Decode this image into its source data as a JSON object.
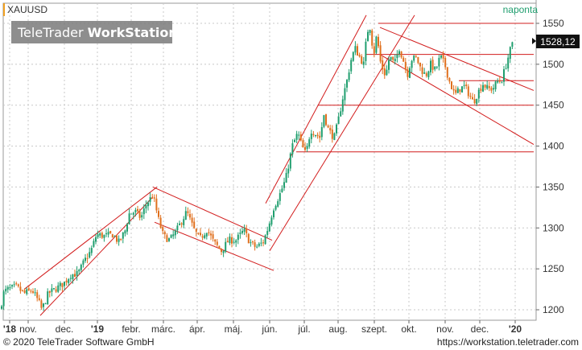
{
  "symbol": "XAUUSD",
  "period": "naponta",
  "brand": {
    "name_light": "TeleTrader ",
    "name_bold": "WorkStation"
  },
  "last_price_label": "1528,12",
  "footer": {
    "copyright": "© 2020 TeleTrader Software GmbH",
    "url": "https://workstation.teletrader.com"
  },
  "colors": {
    "up": "#1f9e6e",
    "down": "#e0701e",
    "trendline": "#d21c1c",
    "grid": "#c8c8c8",
    "symbol_accent": "#f0a020",
    "period_text": "#1f9e6e"
  },
  "chart_data": {
    "type": "candlestick",
    "y_axis": {
      "ticks": [
        1200,
        1250,
        1300,
        1350,
        1400,
        1450,
        1500,
        1550
      ],
      "ylim": [
        1190,
        1565
      ]
    },
    "x_axis": {
      "labels": [
        "'18",
        "nov.",
        "dec.",
        "'19",
        "febr.",
        "márc.",
        "ápr.",
        "máj.",
        "jún.",
        "júl.",
        "aug.",
        "szept.",
        "okt.",
        "nov.",
        "dec.",
        "'20"
      ],
      "bold_labels": [
        "'18",
        "'19",
        "'20"
      ]
    },
    "last_value": 1528.12,
    "path": [
      [
        0,
        1200
      ],
      [
        5,
        1222
      ],
      [
        10,
        1225
      ],
      [
        20,
        1228
      ],
      [
        30,
        1220
      ],
      [
        40,
        1224
      ],
      [
        48,
        1210
      ],
      [
        52,
        1200
      ],
      [
        60,
        1220
      ],
      [
        70,
        1226
      ],
      [
        80,
        1233
      ],
      [
        88,
        1243
      ],
      [
        97,
        1244
      ],
      [
        105,
        1260
      ],
      [
        113,
        1272
      ],
      [
        120,
        1292
      ],
      [
        130,
        1290
      ],
      [
        140,
        1292
      ],
      [
        148,
        1282
      ],
      [
        156,
        1298
      ],
      [
        160,
        1317
      ],
      [
        168,
        1320
      ],
      [
        175,
        1312
      ],
      [
        182,
        1330
      ],
      [
        190,
        1340
      ],
      [
        197,
        1310
      ],
      [
        203,
        1290
      ],
      [
        211,
        1285
      ],
      [
        220,
        1298
      ],
      [
        232,
        1320
      ],
      [
        240,
        1300
      ],
      [
        248,
        1286
      ],
      [
        257,
        1298
      ],
      [
        266,
        1282
      ],
      [
        275,
        1272
      ],
      [
        284,
        1285
      ],
      [
        293,
        1285
      ],
      [
        303,
        1297
      ],
      [
        310,
        1283
      ],
      [
        318,
        1276
      ],
      [
        327,
        1283
      ],
      [
        333,
        1300
      ],
      [
        340,
        1325
      ],
      [
        348,
        1342
      ],
      [
        355,
        1360
      ],
      [
        363,
        1400
      ],
      [
        370,
        1416
      ],
      [
        375,
        1400
      ],
      [
        380,
        1390
      ],
      [
        386,
        1420
      ],
      [
        392,
        1415
      ],
      [
        398,
        1410
      ],
      [
        402,
        1440
      ],
      [
        408,
        1420
      ],
      [
        415,
        1410
      ],
      [
        420,
        1430
      ],
      [
        426,
        1460
      ],
      [
        431,
        1480
      ],
      [
        436,
        1505
      ],
      [
        441,
        1520
      ],
      [
        446,
        1510
      ],
      [
        452,
        1500
      ],
      [
        456,
        1540
      ],
      [
        460,
        1546
      ],
      [
        464,
        1510
      ],
      [
        468,
        1536
      ],
      [
        473,
        1500
      ],
      [
        479,
        1486
      ],
      [
        484,
        1510
      ],
      [
        490,
        1500
      ],
      [
        496,
        1520
      ],
      [
        501,
        1505
      ],
      [
        506,
        1487
      ],
      [
        511,
        1506
      ],
      [
        517,
        1508
      ],
      [
        523,
        1494
      ],
      [
        529,
        1486
      ],
      [
        535,
        1500
      ],
      [
        541,
        1492
      ],
      [
        547,
        1510
      ],
      [
        553,
        1498
      ],
      [
        558,
        1480
      ],
      [
        565,
        1462
      ],
      [
        571,
        1470
      ],
      [
        577,
        1473
      ],
      [
        583,
        1463
      ],
      [
        588,
        1453
      ],
      [
        594,
        1466
      ],
      [
        600,
        1476
      ],
      [
        606,
        1470
      ],
      [
        612,
        1470
      ],
      [
        618,
        1479
      ],
      [
        623,
        1480
      ],
      [
        628,
        1497
      ],
      [
        633,
        1515
      ],
      [
        638,
        1528
      ]
    ],
    "trendlines": [
      {
        "from": [
          50,
          1193
        ],
        "to": [
          190,
          1338
        ]
      },
      {
        "from": [
          30,
          1225
        ],
        "to": [
          195,
          1350
        ]
      },
      {
        "from": [
          190,
          1350
        ],
        "to": [
          338,
          1285
        ]
      },
      {
        "from": [
          192,
          1307
        ],
        "to": [
          340,
          1248
        ]
      },
      {
        "from": [
          330,
          1330
        ],
        "to": [
          455,
          1560
        ]
      },
      {
        "from": [
          335,
          1272
        ],
        "to": [
          515,
          1560
        ]
      },
      {
        "from": [
          472,
          1545
        ],
        "to": [
          663,
          1468
        ]
      },
      {
        "from": [
          472,
          1512
        ],
        "to": [
          663,
          1402
        ]
      }
    ],
    "h_lines": [
      {
        "from": 470,
        "to": 663,
        "value": 1550
      },
      {
        "from": 455,
        "to": 663,
        "value": 1512
      },
      {
        "from": 570,
        "to": 663,
        "value": 1480
      },
      {
        "from": 395,
        "to": 663,
        "value": 1450
      },
      {
        "from": 368,
        "to": 663,
        "value": 1393
      }
    ]
  }
}
